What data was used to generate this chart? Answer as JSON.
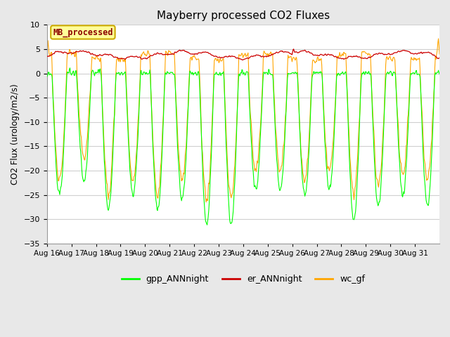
{
  "title": "Mayberry processed CO2 Fluxes",
  "ylabel": "CO2 Flux (urology/m2/s)",
  "legend_label_text": "MB_processed",
  "legend_text_color": "#8B0000",
  "legend_box_facecolor": "#FFFF99",
  "legend_box_edgecolor": "#CCAA00",
  "ylim": [
    -35,
    10
  ],
  "yticks": [
    -35,
    -30,
    -25,
    -20,
    -15,
    -10,
    -5,
    0,
    5,
    10
  ],
  "n_days": 16,
  "points_per_day": 48,
  "colors": {
    "gpp": "#00FF00",
    "er": "#CC0000",
    "wc": "#FFA500"
  },
  "fig_bg": "#e8e8e8",
  "plot_bg": "#ffffff",
  "grid_color": "#d0d0d0",
  "day_labels": [
    "Aug 16",
    "Aug 17",
    "Aug 18",
    "Aug 19",
    "Aug 20",
    "Aug 21",
    "Aug 22",
    "Aug 23",
    "Aug 24",
    "Aug 25",
    "Aug 26",
    "Aug 27",
    "Aug 28",
    "Aug 29",
    "Aug 30",
    "Aug 31"
  ]
}
